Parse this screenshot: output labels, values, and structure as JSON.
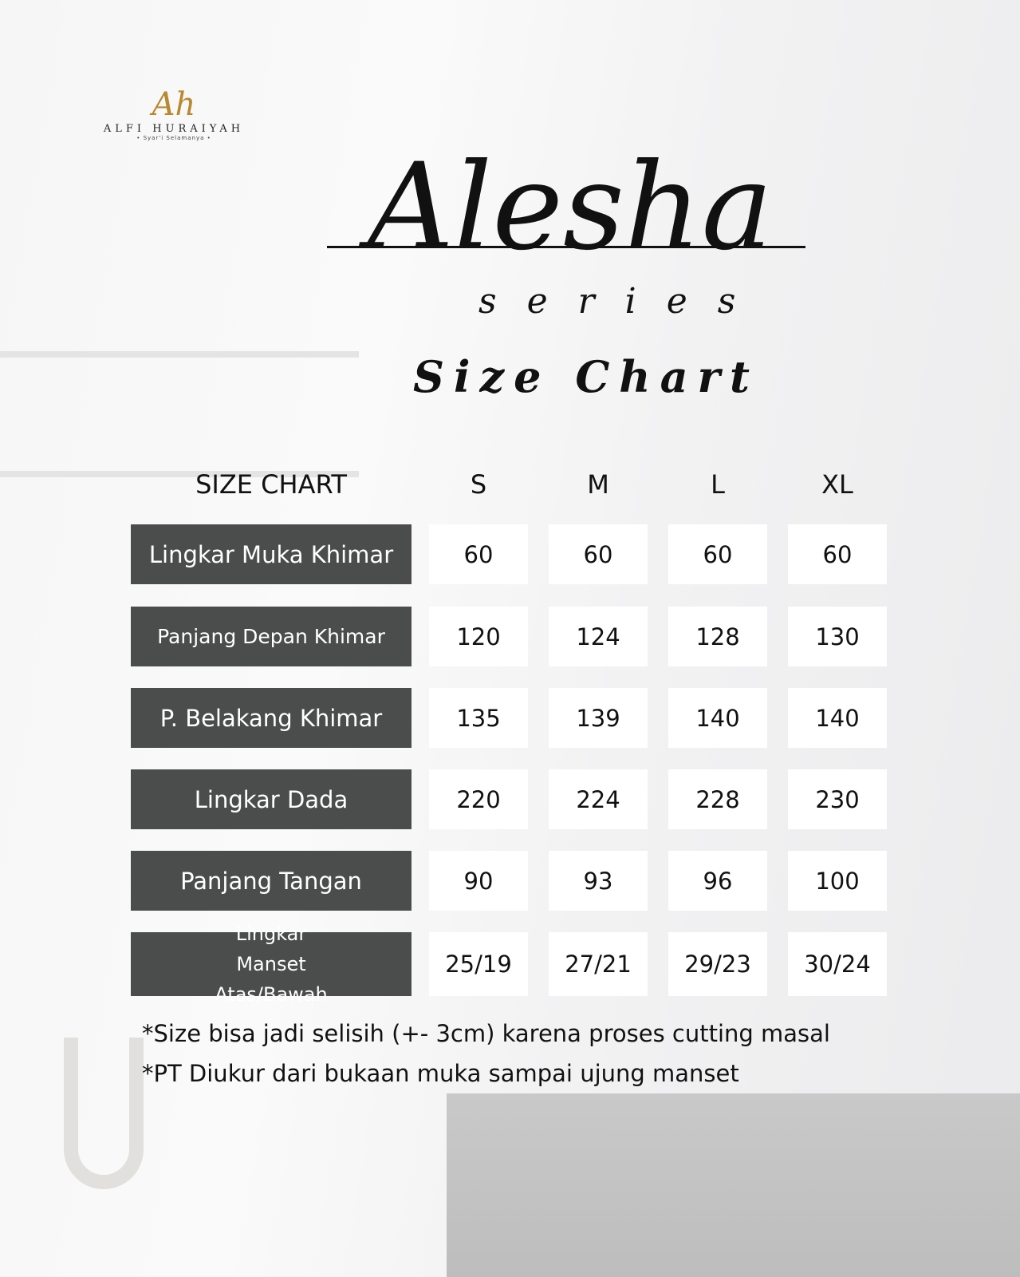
{
  "brand": {
    "mark": "Ah",
    "name": "ALFI HURAIYAH",
    "tagline": "• Syar'i Selamanya •",
    "color": "#b8892e"
  },
  "title": "Alesha",
  "subtitle": "series",
  "chart_title": "Size Chart",
  "table": {
    "corner": "SIZE CHART",
    "columns": [
      "S",
      "M",
      "L",
      "XL"
    ],
    "rows": [
      {
        "label": "Lingkar Muka Khimar",
        "values": [
          "60",
          "60",
          "60",
          "60"
        ]
      },
      {
        "label": "Panjang Depan Khimar",
        "values": [
          "120",
          "124",
          "128",
          "130"
        ]
      },
      {
        "label": "P. Belakang Khimar",
        "values": [
          "135",
          "139",
          "140",
          "140"
        ]
      },
      {
        "label": "Lingkar Dada",
        "values": [
          "220",
          "224",
          "228",
          "230"
        ]
      },
      {
        "label": "Panjang Tangan",
        "values": [
          "90",
          "93",
          "96",
          "100"
        ]
      },
      {
        "label": "Lingkar Manset Atas/Bawah",
        "values": [
          "25/19",
          "27/21",
          "29/23",
          "30/24"
        ]
      }
    ]
  },
  "notes": [
    "*Size bisa jadi selisih (+- 3cm) karena proses cutting masal",
    "*PT Diukur dari bukaan muka sampai ujung manset"
  ],
  "colors": {
    "label_bg": "#4b4d4c",
    "cell_bg": "#ffffff"
  }
}
